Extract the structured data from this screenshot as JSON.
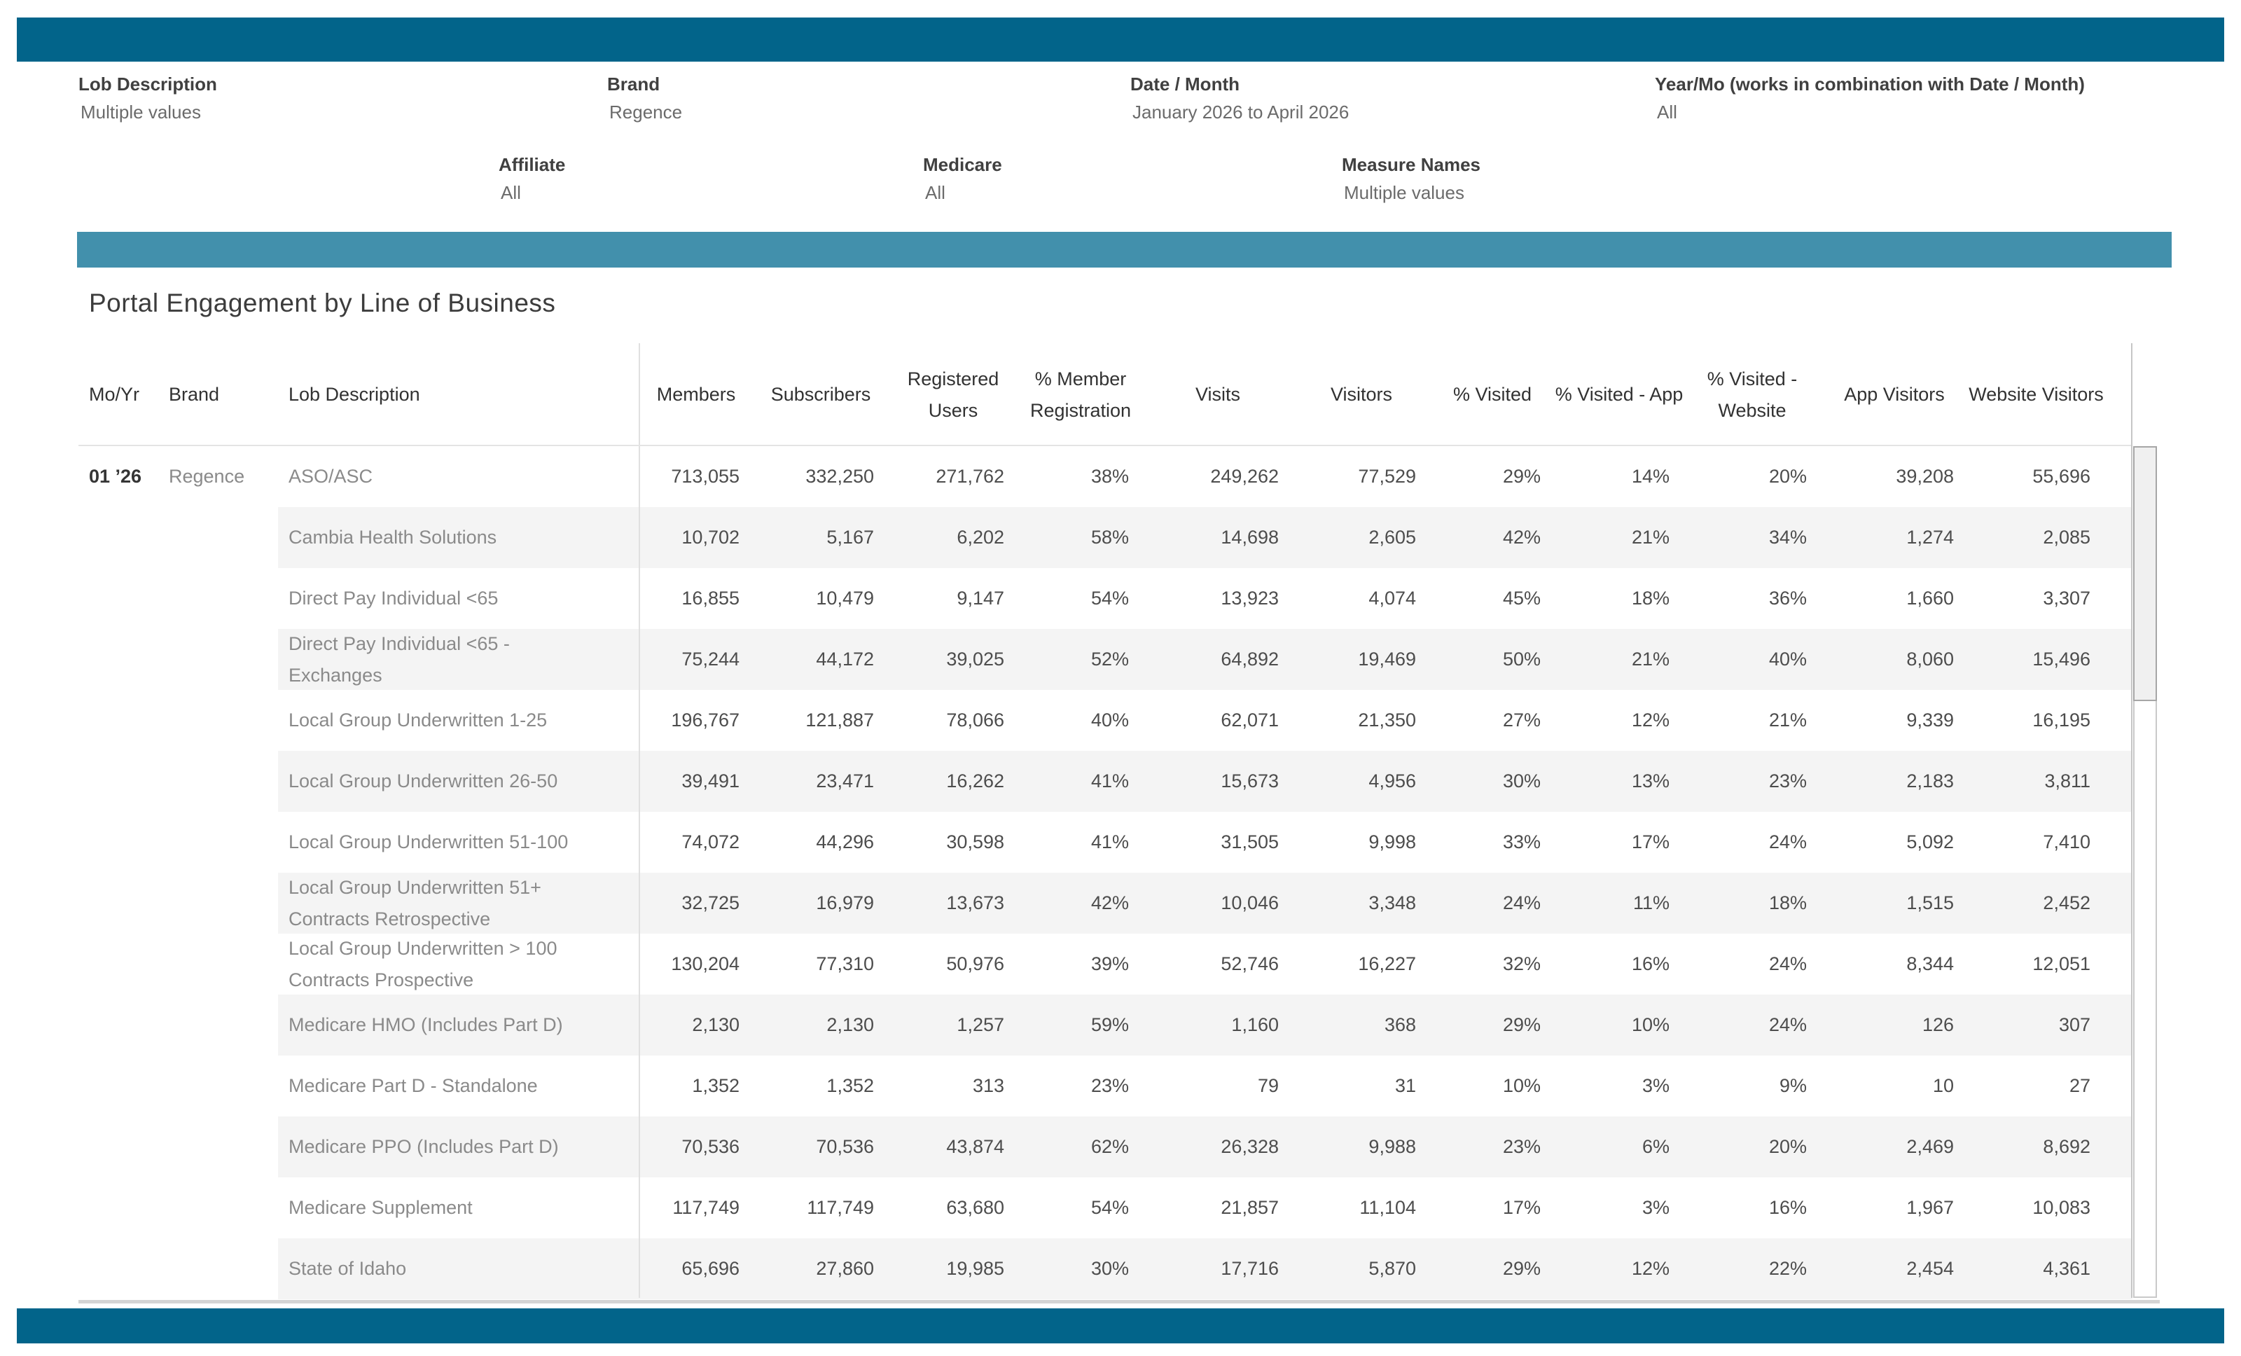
{
  "colors": {
    "banner_teal": "#02648a",
    "accent_teal": "#4290ac",
    "row_stripe": "#f4f4f4"
  },
  "filters": {
    "row1": [
      {
        "label": "Lob Description",
        "value": "Multiple values"
      },
      {
        "label": "Brand",
        "value": "Regence"
      },
      {
        "label": "Date / Month",
        "value": "January 2026 to April 2026"
      },
      {
        "label": "Year/Mo (works in combination with Date / Month)",
        "value": "All"
      }
    ],
    "row2": [
      {
        "label": "Affiliate",
        "value": "All"
      },
      {
        "label": "Medicare",
        "value": "All"
      },
      {
        "label": "Measure Names",
        "value": "Multiple values"
      }
    ]
  },
  "table": {
    "title": "Portal Engagement by Line of Business",
    "columns": [
      "Mo/Yr",
      "Brand",
      "Lob Description",
      "Members",
      "Subscribers",
      "Registered Users",
      "% Member Registration",
      "Visits",
      "Visitors",
      "% Visited",
      "% Visited - App",
      "% Visited - Website",
      "App Visitors",
      "Website Visitors"
    ],
    "rows": [
      {
        "mo_yr": "01 ’26",
        "brand": "Regence",
        "lob": "ASO/ASC",
        "values": [
          "713,055",
          "332,250",
          "271,762",
          "38%",
          "249,262",
          "77,529",
          "29%",
          "14%",
          "20%",
          "39,208",
          "55,696"
        ]
      },
      {
        "mo_yr": "",
        "brand": "",
        "lob": "Cambia Health Solutions",
        "values": [
          "10,702",
          "5,167",
          "6,202",
          "58%",
          "14,698",
          "2,605",
          "42%",
          "21%",
          "34%",
          "1,274",
          "2,085"
        ]
      },
      {
        "mo_yr": "",
        "brand": "",
        "lob": "Direct Pay Individual <65",
        "values": [
          "16,855",
          "10,479",
          "9,147",
          "54%",
          "13,923",
          "4,074",
          "45%",
          "18%",
          "36%",
          "1,660",
          "3,307"
        ]
      },
      {
        "mo_yr": "",
        "brand": "",
        "lob": "Direct Pay Individual <65 - Exchanges",
        "values": [
          "75,244",
          "44,172",
          "39,025",
          "52%",
          "64,892",
          "19,469",
          "50%",
          "21%",
          "40%",
          "8,060",
          "15,496"
        ]
      },
      {
        "mo_yr": "",
        "brand": "",
        "lob": "Local Group Underwritten 1-25",
        "values": [
          "196,767",
          "121,887",
          "78,066",
          "40%",
          "62,071",
          "21,350",
          "27%",
          "12%",
          "21%",
          "9,339",
          "16,195"
        ]
      },
      {
        "mo_yr": "",
        "brand": "",
        "lob": "Local Group Underwritten 26-50",
        "values": [
          "39,491",
          "23,471",
          "16,262",
          "41%",
          "15,673",
          "4,956",
          "30%",
          "13%",
          "23%",
          "2,183",
          "3,811"
        ]
      },
      {
        "mo_yr": "",
        "brand": "",
        "lob": "Local Group Underwritten 51-100",
        "values": [
          "74,072",
          "44,296",
          "30,598",
          "41%",
          "31,505",
          "9,998",
          "33%",
          "17%",
          "24%",
          "5,092",
          "7,410"
        ]
      },
      {
        "mo_yr": "",
        "brand": "",
        "lob": "Local Group Underwritten 51+ Contracts Retrospective",
        "values": [
          "32,725",
          "16,979",
          "13,673",
          "42%",
          "10,046",
          "3,348",
          "24%",
          "11%",
          "18%",
          "1,515",
          "2,452"
        ]
      },
      {
        "mo_yr": "",
        "brand": "",
        "lob": "Local Group Underwritten > 100 Contracts Prospective",
        "values": [
          "130,204",
          "77,310",
          "50,976",
          "39%",
          "52,746",
          "16,227",
          "32%",
          "16%",
          "24%",
          "8,344",
          "12,051"
        ]
      },
      {
        "mo_yr": "",
        "brand": "",
        "lob": "Medicare HMO (Includes Part D)",
        "values": [
          "2,130",
          "2,130",
          "1,257",
          "59%",
          "1,160",
          "368",
          "29%",
          "10%",
          "24%",
          "126",
          "307"
        ]
      },
      {
        "mo_yr": "",
        "brand": "",
        "lob": "Medicare Part D - Standalone",
        "values": [
          "1,352",
          "1,352",
          "313",
          "23%",
          "79",
          "31",
          "10%",
          "3%",
          "9%",
          "10",
          "27"
        ]
      },
      {
        "mo_yr": "",
        "brand": "",
        "lob": "Medicare PPO (Includes Part D)",
        "values": [
          "70,536",
          "70,536",
          "43,874",
          "62%",
          "26,328",
          "9,988",
          "23%",
          "6%",
          "20%",
          "2,469",
          "8,692"
        ]
      },
      {
        "mo_yr": "",
        "brand": "",
        "lob": "Medicare Supplement",
        "values": [
          "117,749",
          "117,749",
          "63,680",
          "54%",
          "21,857",
          "11,104",
          "17%",
          "3%",
          "16%",
          "1,967",
          "10,083"
        ]
      },
      {
        "mo_yr": "",
        "brand": "",
        "lob": "State of Idaho",
        "values": [
          "65,696",
          "27,860",
          "19,985",
          "30%",
          "17,716",
          "5,870",
          "29%",
          "12%",
          "22%",
          "2,454",
          "4,361"
        ]
      }
    ]
  }
}
